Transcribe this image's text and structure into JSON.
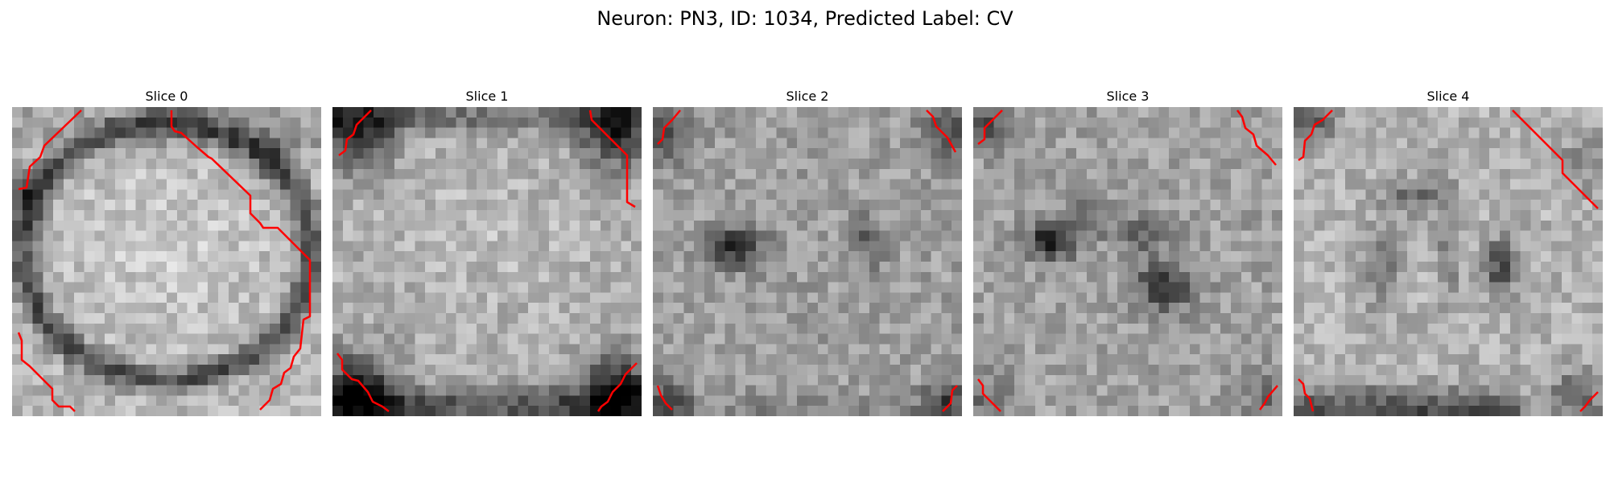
{
  "figure": {
    "title": "Neuron: PN3, ID: 1034, Predicted Label: CV"
  },
  "slices": [
    {
      "title": "Slice 0",
      "contour_color": "#ff0000"
    },
    {
      "title": "Slice 1",
      "contour_color": "#ff0000"
    },
    {
      "title": "Slice 2",
      "contour_color": "#ff0000"
    },
    {
      "title": "Slice 3",
      "contour_color": "#ff0000"
    },
    {
      "title": "Slice 4",
      "contour_color": "#ff0000"
    }
  ],
  "colormap": "gray"
}
